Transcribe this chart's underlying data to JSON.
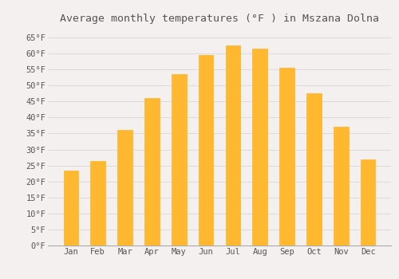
{
  "title": "Average monthly temperatures (°F ) in Mszana Dolna",
  "months": [
    "Jan",
    "Feb",
    "Mar",
    "Apr",
    "May",
    "Jun",
    "Jul",
    "Aug",
    "Sep",
    "Oct",
    "Nov",
    "Dec"
  ],
  "values": [
    23.5,
    26.5,
    36.0,
    46.0,
    53.5,
    59.5,
    62.5,
    61.5,
    55.5,
    47.5,
    37.0,
    27.0
  ],
  "bar_color_top": "#FFA500",
  "bar_color_bottom": "#FFD060",
  "bar_edge_color": "#E8950A",
  "background_color": "#F5F0F0",
  "grid_color": "#D8D8D8",
  "text_color": "#555555",
  "ylim": [
    0,
    68
  ],
  "yticks": [
    0,
    5,
    10,
    15,
    20,
    25,
    30,
    35,
    40,
    45,
    50,
    55,
    60,
    65
  ],
  "title_fontsize": 9.5,
  "tick_fontsize": 7.5,
  "bar_width": 0.55,
  "figsize": [
    5.0,
    3.5
  ],
  "dpi": 100
}
